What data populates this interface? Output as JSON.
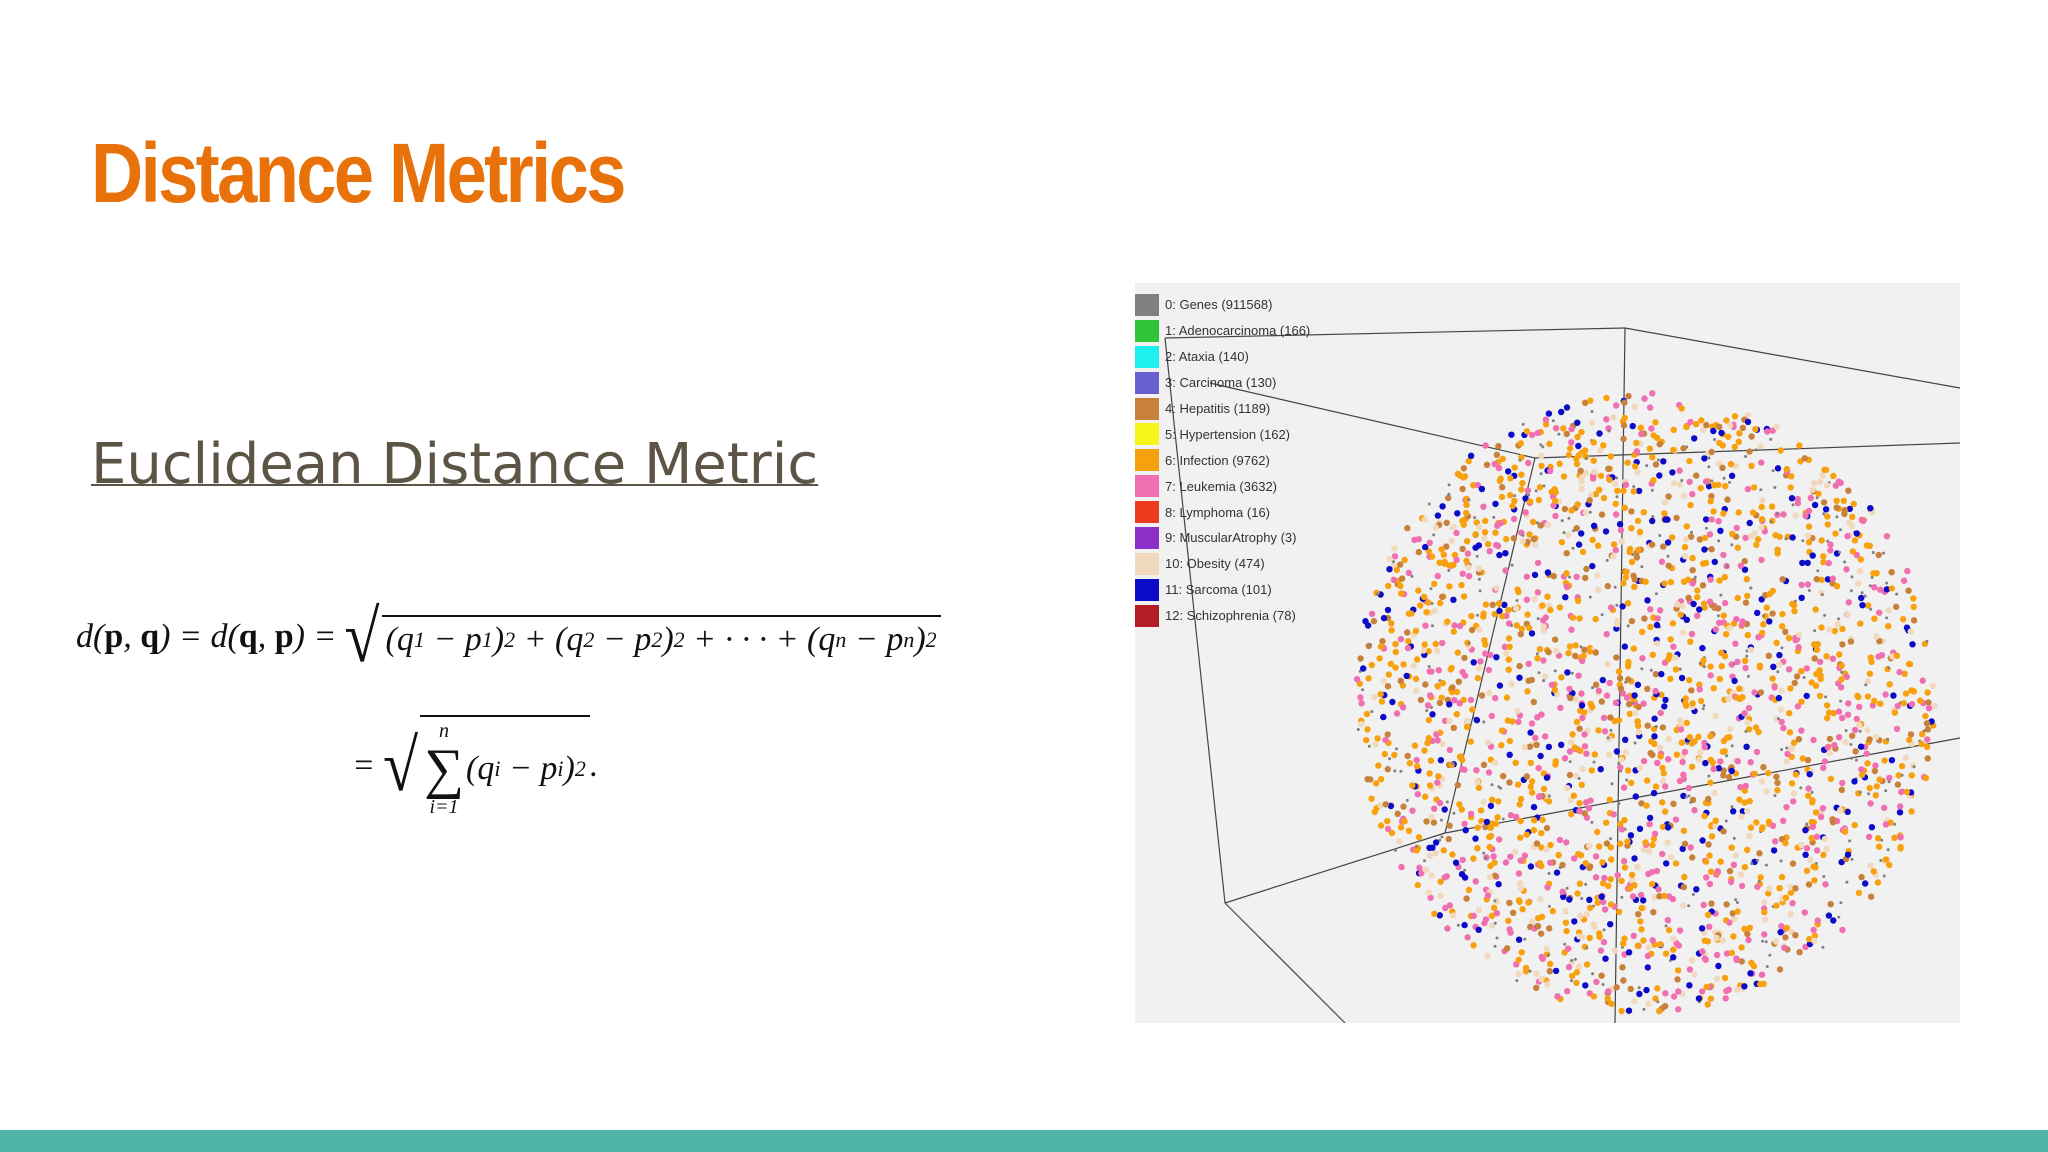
{
  "header": {
    "title": "Distance Metrics"
  },
  "link": {
    "text": "Euclidean Distance Metric"
  },
  "formula": {
    "lines": [
      {
        "lead": [
          {
            "t": "d("
          },
          {
            "t": "p",
            "b": true
          },
          {
            "t": ", "
          },
          {
            "t": "q",
            "b": true
          },
          {
            "t": ") = d("
          },
          {
            "t": "q",
            "b": true
          },
          {
            "t": ", "
          },
          {
            "t": "p",
            "b": true
          },
          {
            "t": ") ="
          }
        ],
        "radical": "√",
        "radicand": [
          {
            "t": "(q"
          },
          {
            "t": "1",
            "s": "sub"
          },
          {
            "t": " − p"
          },
          {
            "t": "1",
            "s": "sub"
          },
          {
            "t": ")"
          },
          {
            "t": "2",
            "s": "sup"
          },
          {
            "t": " + (q"
          },
          {
            "t": "2",
            "s": "sub"
          },
          {
            "t": " − p"
          },
          {
            "t": "2",
            "s": "sub"
          },
          {
            "t": ")"
          },
          {
            "t": "2",
            "s": "sup"
          },
          {
            "t": " + · · · + (q"
          },
          {
            "t": "n",
            "s": "sub"
          },
          {
            "t": " − p"
          },
          {
            "t": "n",
            "s": "sub"
          },
          {
            "t": ")"
          },
          {
            "t": "2",
            "s": "sup"
          }
        ],
        "trail": []
      },
      {
        "lead": [
          {
            "t": "="
          }
        ],
        "radical": "√",
        "radicand": [
          {
            "t": "∑",
            "over": "n",
            "under": "i=1"
          },
          {
            "t": "(q"
          },
          {
            "t": "i",
            "s": "sub"
          },
          {
            "t": " − p"
          },
          {
            "t": "i",
            "s": "sub"
          },
          {
            "t": ")"
          },
          {
            "t": "2",
            "s": "sup"
          }
        ],
        "trail": [
          {
            "t": "."
          }
        ]
      }
    ]
  },
  "plot": {
    "legend": [
      {
        "label": "0: Genes (911568)",
        "color": "#808080"
      },
      {
        "label": "1: Adenocarcinoma (166)",
        "color": "#2fc43a"
      },
      {
        "label": "2: Ataxia (140)",
        "color": "#1ef0f0"
      },
      {
        "label": "3: Carcinoma (130)",
        "color": "#6a5fd0"
      },
      {
        "label": "4: Hepatitis (1189)",
        "color": "#c8813a"
      },
      {
        "label": "5: Hypertension (162)",
        "color": "#f5f51a"
      },
      {
        "label": "6: Infection (9762)",
        "color": "#f8a10f"
      },
      {
        "label": "7: Leukemia (3632)",
        "color": "#f06fb0"
      },
      {
        "label": "8: Lymphoma (16)",
        "color": "#ee3a1e"
      },
      {
        "label": "9: MuscularAtrophy (3)",
        "color": "#8a2fc8"
      },
      {
        "label": "10: Obesity (474)",
        "color": "#f1d9be"
      },
      {
        "label": "11: Sarcoma (101)",
        "color": "#0b0bc8"
      },
      {
        "label": "12: Schizophrenia (78)",
        "color": "#b21e24"
      }
    ]
  }
}
